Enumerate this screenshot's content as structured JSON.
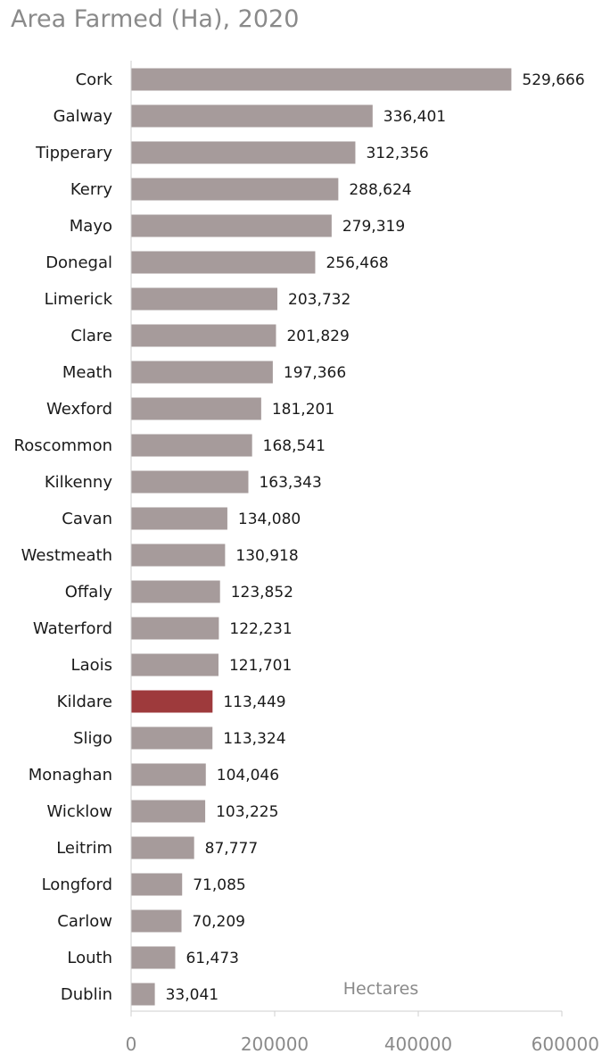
{
  "chart_data": {
    "type": "bar",
    "orientation": "horizontal",
    "title": "Area Farmed (Ha), 2020",
    "xlabel": "Hectares",
    "ylabel": "",
    "xlim": [
      0,
      600000
    ],
    "xticks": [
      "0",
      "200000",
      "400000",
      "600000"
    ],
    "grid": false,
    "legend": "none",
    "colors": {
      "default": "#a69b9b",
      "highlight": "#9e3a3c"
    },
    "highlight": "Kildare",
    "categories": [
      "Cork",
      "Galway",
      "Tipperary",
      "Kerry",
      "Mayo",
      "Donegal",
      "Limerick",
      "Clare",
      "Meath",
      "Wexford",
      "Roscommon",
      "Kilkenny",
      "Cavan",
      "Westmeath",
      "Offaly",
      "Waterford",
      "Laois",
      "Kildare",
      "Sligo",
      "Monaghan",
      "Wicklow",
      "Leitrim",
      "Longford",
      "Carlow",
      "Louth",
      "Dublin"
    ],
    "values": [
      529666,
      336401,
      312356,
      288624,
      279319,
      256468,
      203732,
      201829,
      197366,
      181201,
      168541,
      163343,
      134080,
      130918,
      123852,
      122231,
      121701,
      113449,
      113324,
      104046,
      103225,
      87777,
      71085,
      70209,
      61473,
      33041
    ],
    "value_labels": [
      "529,666",
      "336,401",
      "312,356",
      "288,624",
      "279,319",
      "256,468",
      "203,732",
      "201,829",
      "197,366",
      "181,201",
      "168,541",
      "163,343",
      "134,080",
      "130,918",
      "123,852",
      "122,231",
      "121,701",
      "113,449",
      "113,324",
      "104,046",
      "103,225",
      "87,777",
      "71,085",
      "70,209",
      "61,473",
      "33,041"
    ]
  }
}
